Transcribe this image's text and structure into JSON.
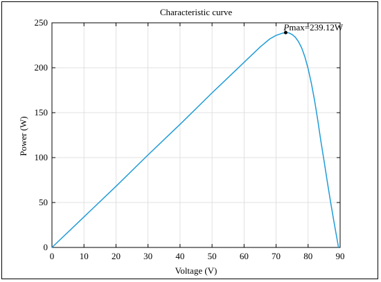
{
  "chart_data": {
    "type": "line",
    "title": "Characteristic curve",
    "xlabel": "Voltage (V)",
    "ylabel": "Power (W)",
    "xlim": [
      0,
      90
    ],
    "ylim": [
      0,
      250
    ],
    "xticks": [
      0,
      10,
      20,
      30,
      40,
      50,
      60,
      70,
      80,
      90
    ],
    "yticks": [
      0,
      50,
      100,
      150,
      200,
      250
    ],
    "grid": true,
    "series_color": "#1f9bd7",
    "series": [
      {
        "x": [
          0,
          10,
          20,
          30,
          40,
          50,
          60,
          65,
          68,
          70,
          72,
          73,
          74,
          75,
          76,
          77,
          78,
          79,
          80,
          81,
          82,
          83,
          84,
          85,
          86,
          87,
          88,
          89,
          89.5
        ],
        "y": [
          0,
          34,
          68,
          103,
          137,
          172,
          206,
          223,
          232,
          236,
          238.5,
          239.12,
          238.8,
          237,
          234,
          229,
          222,
          212,
          199,
          183,
          164,
          142,
          118,
          96,
          73,
          51,
          30,
          10,
          0
        ]
      }
    ],
    "annotation": {
      "x": 73,
      "y": 239.12,
      "prefix": "P",
      "text": "max=239.12W"
    }
  }
}
